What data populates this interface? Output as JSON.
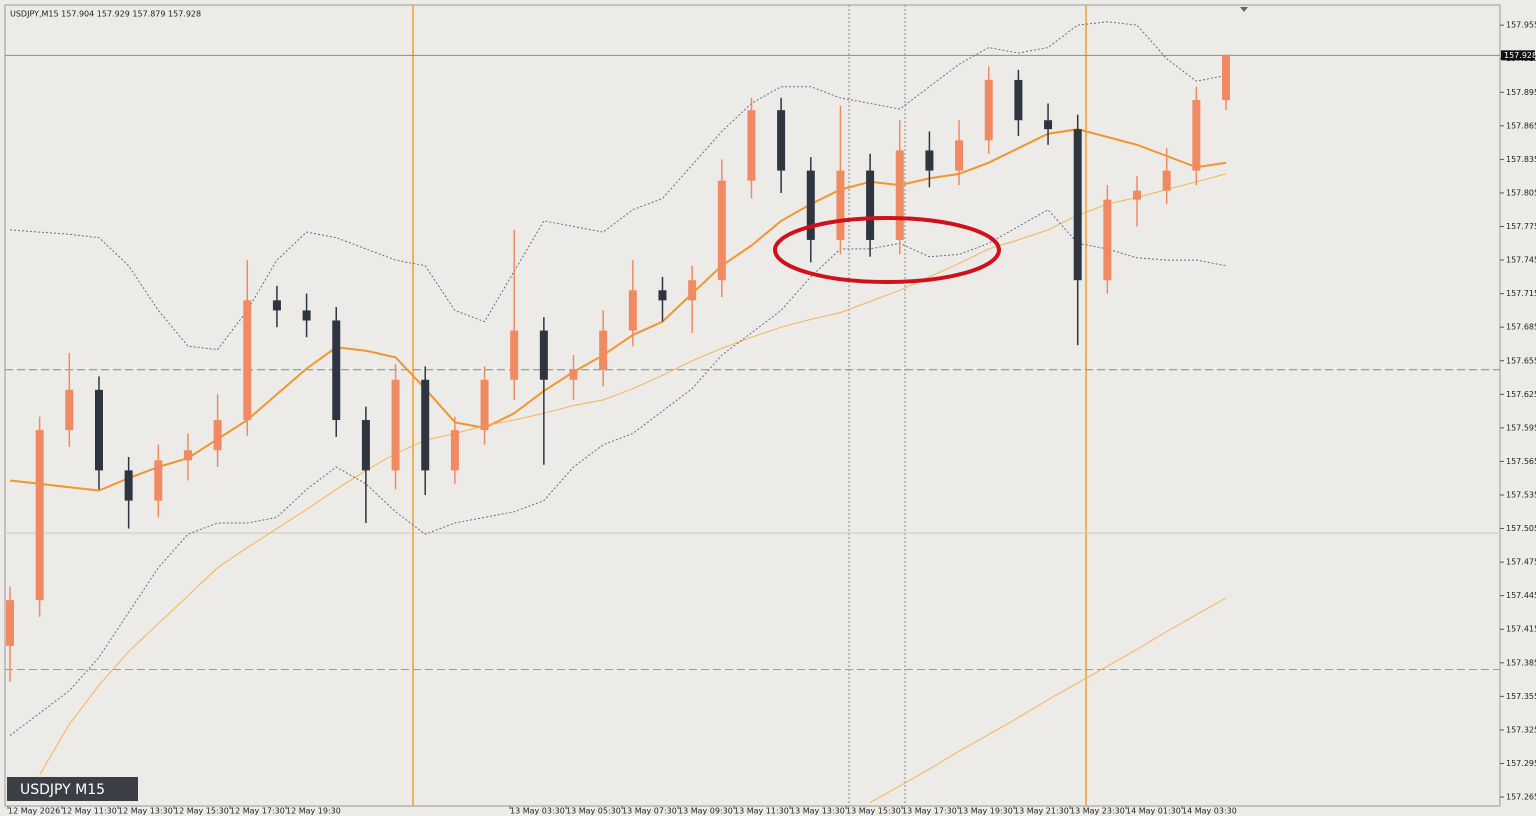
{
  "chart_data": {
    "type": "candlestick",
    "header": "USDJPY,M15 157.904 157.929 157.879 157.928",
    "symbol_label": "USDJPY M15",
    "current_price": 157.928,
    "ylim": [
      157.257,
      157.973
    ],
    "yticks": [
      157.265,
      157.295,
      157.325,
      157.355,
      157.385,
      157.415,
      157.445,
      157.475,
      157.505,
      157.535,
      157.565,
      157.595,
      157.625,
      157.655,
      157.685,
      157.715,
      157.745,
      157.775,
      157.805,
      157.835,
      157.865,
      157.895,
      157.925,
      157.955
    ],
    "xtick_labels": [
      "12 May 2026",
      "12 May 11:30",
      "12 May 13:30",
      "12 May 15:30",
      "12 May 17:30",
      "12 May 19:30",
      "13 May 03:30",
      "13 May 05:30",
      "13 May 07:30",
      "13 May 09:30",
      "13 May 11:30",
      "13 May 13:30",
      "13 May 15:30",
      "13 May 17:30",
      "13 May 19:30",
      "13 May 21:30",
      "13 May 23:30",
      "14 May 01:30",
      "14 May 03:30"
    ],
    "up_color": "#f08a62",
    "down_color": "#2e3440",
    "open": [
      157.4,
      157.441,
      157.593,
      157.629,
      157.557,
      157.53,
      157.566,
      157.575,
      157.602,
      157.709,
      157.7,
      157.691,
      157.602,
      157.557,
      157.638,
      157.557,
      157.593,
      157.638,
      157.682,
      157.638,
      157.647,
      157.682,
      157.718,
      157.709,
      157.727,
      157.816,
      157.879,
      157.825,
      157.763,
      157.825,
      157.763,
      157.843,
      157.825,
      157.852,
      157.906,
      157.87,
      157.862,
      157.727,
      157.799,
      157.807,
      157.825,
      157.888
    ],
    "high": [
      157.453,
      157.605,
      157.662,
      157.641,
      157.569,
      157.58,
      157.59,
      157.625,
      157.745,
      157.722,
      157.715,
      157.703,
      157.614,
      157.652,
      157.65,
      157.605,
      157.65,
      157.772,
      157.694,
      157.66,
      157.7,
      157.745,
      157.73,
      157.74,
      157.835,
      157.89,
      157.89,
      157.837,
      157.883,
      157.84,
      157.87,
      157.86,
      157.87,
      157.918,
      157.915,
      157.885,
      157.875,
      157.812,
      157.82,
      157.845,
      157.9,
      157.929
    ],
    "low": [
      157.368,
      157.426,
      157.578,
      157.54,
      157.505,
      157.515,
      157.548,
      157.56,
      157.588,
      157.685,
      157.676,
      157.587,
      157.51,
      157.54,
      157.535,
      157.545,
      157.58,
      157.62,
      157.562,
      157.62,
      157.632,
      157.668,
      157.69,
      157.68,
      157.712,
      157.8,
      157.805,
      157.743,
      157.75,
      157.748,
      157.75,
      157.81,
      157.812,
      157.84,
      157.856,
      157.848,
      157.669,
      157.715,
      157.775,
      157.795,
      157.812,
      157.879
    ],
    "close": [
      157.441,
      157.593,
      157.629,
      157.557,
      157.53,
      157.566,
      157.575,
      157.602,
      157.709,
      157.7,
      157.691,
      157.602,
      157.557,
      157.638,
      157.557,
      157.593,
      157.638,
      157.682,
      157.638,
      157.647,
      157.682,
      157.718,
      157.709,
      157.727,
      157.816,
      157.879,
      157.825,
      157.763,
      157.825,
      157.763,
      157.843,
      157.825,
      157.852,
      157.906,
      157.87,
      157.862,
      157.727,
      157.799,
      157.807,
      157.825,
      157.888,
      157.928
    ],
    "series": [
      {
        "color": "#f0962e",
        "width": 2,
        "dashed": false,
        "values": [
          157.548,
          157.545,
          157.542,
          157.539,
          157.55,
          157.56,
          157.568,
          157.585,
          157.602,
          157.625,
          157.648,
          157.667,
          157.664,
          157.658,
          157.63,
          157.6,
          157.595,
          157.608,
          157.628,
          157.645,
          157.66,
          157.678,
          157.69,
          157.715,
          157.74,
          157.758,
          157.78,
          157.795,
          157.808,
          157.815,
          157.812,
          157.818,
          157.822,
          157.832,
          157.845,
          157.858,
          157.862,
          157.855,
          157.848,
          157.838,
          157.828,
          157.832
        ]
      },
      {
        "color": "#f5b35a",
        "width": 1,
        "dashed": false,
        "values": [
          null,
          157.285,
          157.33,
          157.365,
          157.395,
          157.42,
          157.445,
          157.47,
          157.488,
          157.505,
          157.522,
          157.54,
          157.557,
          157.572,
          157.584,
          157.59,
          157.597,
          157.602,
          157.608,
          157.615,
          157.62,
          157.63,
          157.642,
          157.655,
          157.666,
          157.676,
          157.685,
          157.692,
          157.698,
          157.708,
          157.718,
          157.73,
          157.742,
          157.755,
          157.763,
          157.772,
          157.785,
          157.795,
          157.801,
          157.808,
          157.815,
          157.822
        ]
      },
      {
        "color": "#f5b35a",
        "width": 1,
        "dashed": false,
        "values": [
          null,
          null,
          null,
          null,
          null,
          null,
          null,
          null,
          null,
          null,
          null,
          null,
          null,
          null,
          null,
          null,
          null,
          null,
          null,
          null,
          null,
          null,
          null,
          null,
          null,
          null,
          null,
          null,
          null,
          157.26,
          157.275,
          157.29,
          157.306,
          157.321,
          157.336,
          157.352,
          157.367,
          157.382,
          157.397,
          157.413,
          157.428,
          157.443
        ]
      },
      {
        "color": "#6b6b8a",
        "width": 1,
        "dashed": true,
        "values": [
          157.772,
          157.77,
          157.768,
          157.765,
          157.74,
          157.7,
          157.668,
          157.665,
          157.7,
          157.745,
          157.77,
          157.765,
          157.755,
          157.745,
          157.74,
          157.7,
          157.69,
          157.735,
          157.78,
          157.775,
          157.77,
          157.79,
          157.8,
          157.83,
          157.86,
          157.885,
          157.9,
          157.9,
          157.89,
          157.885,
          157.88,
          157.9,
          157.92,
          157.935,
          157.93,
          157.935,
          157.955,
          157.958,
          157.955,
          157.925,
          157.905,
          157.91
        ]
      },
      {
        "color": "#6b6b8a",
        "width": 1,
        "dashed": true,
        "values": [
          157.32,
          157.34,
          157.36,
          157.39,
          157.43,
          157.47,
          157.5,
          157.51,
          157.51,
          157.515,
          157.54,
          157.56,
          157.545,
          157.52,
          157.5,
          157.51,
          157.515,
          157.52,
          157.53,
          157.56,
          157.58,
          157.59,
          157.61,
          157.63,
          157.66,
          157.68,
          157.7,
          157.73,
          157.755,
          157.755,
          157.76,
          157.748,
          157.75,
          157.76,
          157.775,
          157.79,
          157.76,
          157.755,
          157.747,
          157.745,
          157.745,
          157.74
        ]
      }
    ],
    "hlines": [
      {
        "value": 157.928,
        "color": "#8a8a8a",
        "dashed": false
      },
      {
        "value": 157.647,
        "color": "#6a9a7a",
        "dashed": true
      },
      {
        "value": 157.501,
        "color": "#c8c8c8",
        "dashed": false
      },
      {
        "value": 157.379,
        "color": "#8aa0c8",
        "dashed": true
      }
    ]
  }
}
